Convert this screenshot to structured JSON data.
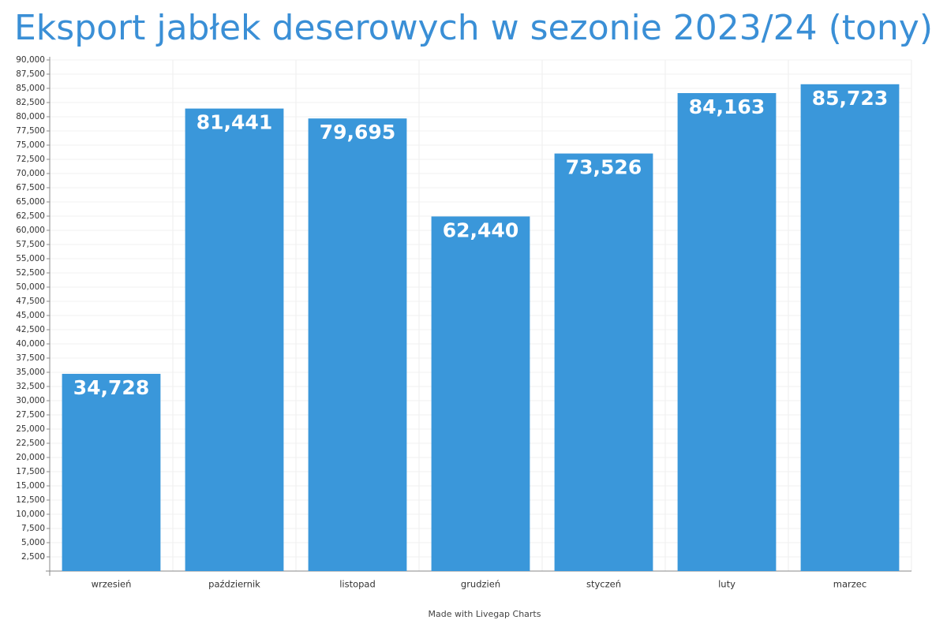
{
  "chart_data": {
    "type": "bar",
    "title": "Eksport jabłek deserowych w sezonie 2023/24 (tony)",
    "categories": [
      "wrzesień",
      "październik",
      "listopad",
      "grudzień",
      "styczeń",
      "luty",
      "marzec"
    ],
    "values": [
      34728,
      81441,
      79695,
      62440,
      73526,
      84163,
      85723
    ],
    "value_labels": [
      "34,728",
      "81,441",
      "79,695",
      "62,440",
      "73,526",
      "84,163",
      "85,723"
    ],
    "color": "#3a97da",
    "ylim": [
      0,
      90000
    ],
    "yticks": [
      {
        "value": 2500,
        "label": "2,500"
      },
      {
        "value": 5000,
        "label": "5,000"
      },
      {
        "value": 7500,
        "label": "7,500"
      },
      {
        "value": 10000,
        "label": "10,000"
      },
      {
        "value": 12500,
        "label": "12,500"
      },
      {
        "value": 15000,
        "label": "15,000"
      },
      {
        "value": 17500,
        "label": "17,500"
      },
      {
        "value": 20000,
        "label": "20,000"
      },
      {
        "value": 22500,
        "label": "22,500"
      },
      {
        "value": 25000,
        "label": "25,000"
      },
      {
        "value": 27500,
        "label": "27,500"
      },
      {
        "value": 30000,
        "label": "30,000"
      },
      {
        "value": 32500,
        "label": "32,500"
      },
      {
        "value": 35000,
        "label": "35,000"
      },
      {
        "value": 37500,
        "label": "37,500"
      },
      {
        "value": 40000,
        "label": "40,000"
      },
      {
        "value": 42500,
        "label": "42,500"
      },
      {
        "value": 45000,
        "label": "45,000"
      },
      {
        "value": 47500,
        "label": "47,500"
      },
      {
        "value": 50000,
        "label": "50,000"
      },
      {
        "value": 52500,
        "label": "52,500"
      },
      {
        "value": 55000,
        "label": "55,000"
      },
      {
        "value": 57500,
        "label": "57,500"
      },
      {
        "value": 60000,
        "label": "60,000"
      },
      {
        "value": 62500,
        "label": "62,500"
      },
      {
        "value": 65000,
        "label": "65,000"
      },
      {
        "value": 67500,
        "label": "67,500"
      },
      {
        "value": 70000,
        "label": "70,000"
      },
      {
        "value": 72500,
        "label": "72,500"
      },
      {
        "value": 75000,
        "label": "75,000"
      },
      {
        "value": 77500,
        "label": "77,500"
      },
      {
        "value": 80000,
        "label": "80,000"
      },
      {
        "value": 82500,
        "label": "82,500"
      },
      {
        "value": 85000,
        "label": "85,000"
      },
      {
        "value": 87500,
        "label": "87,500"
      },
      {
        "value": 90000,
        "label": "90,000"
      }
    ],
    "grid": true,
    "credit": "Made with Livegap Charts"
  }
}
